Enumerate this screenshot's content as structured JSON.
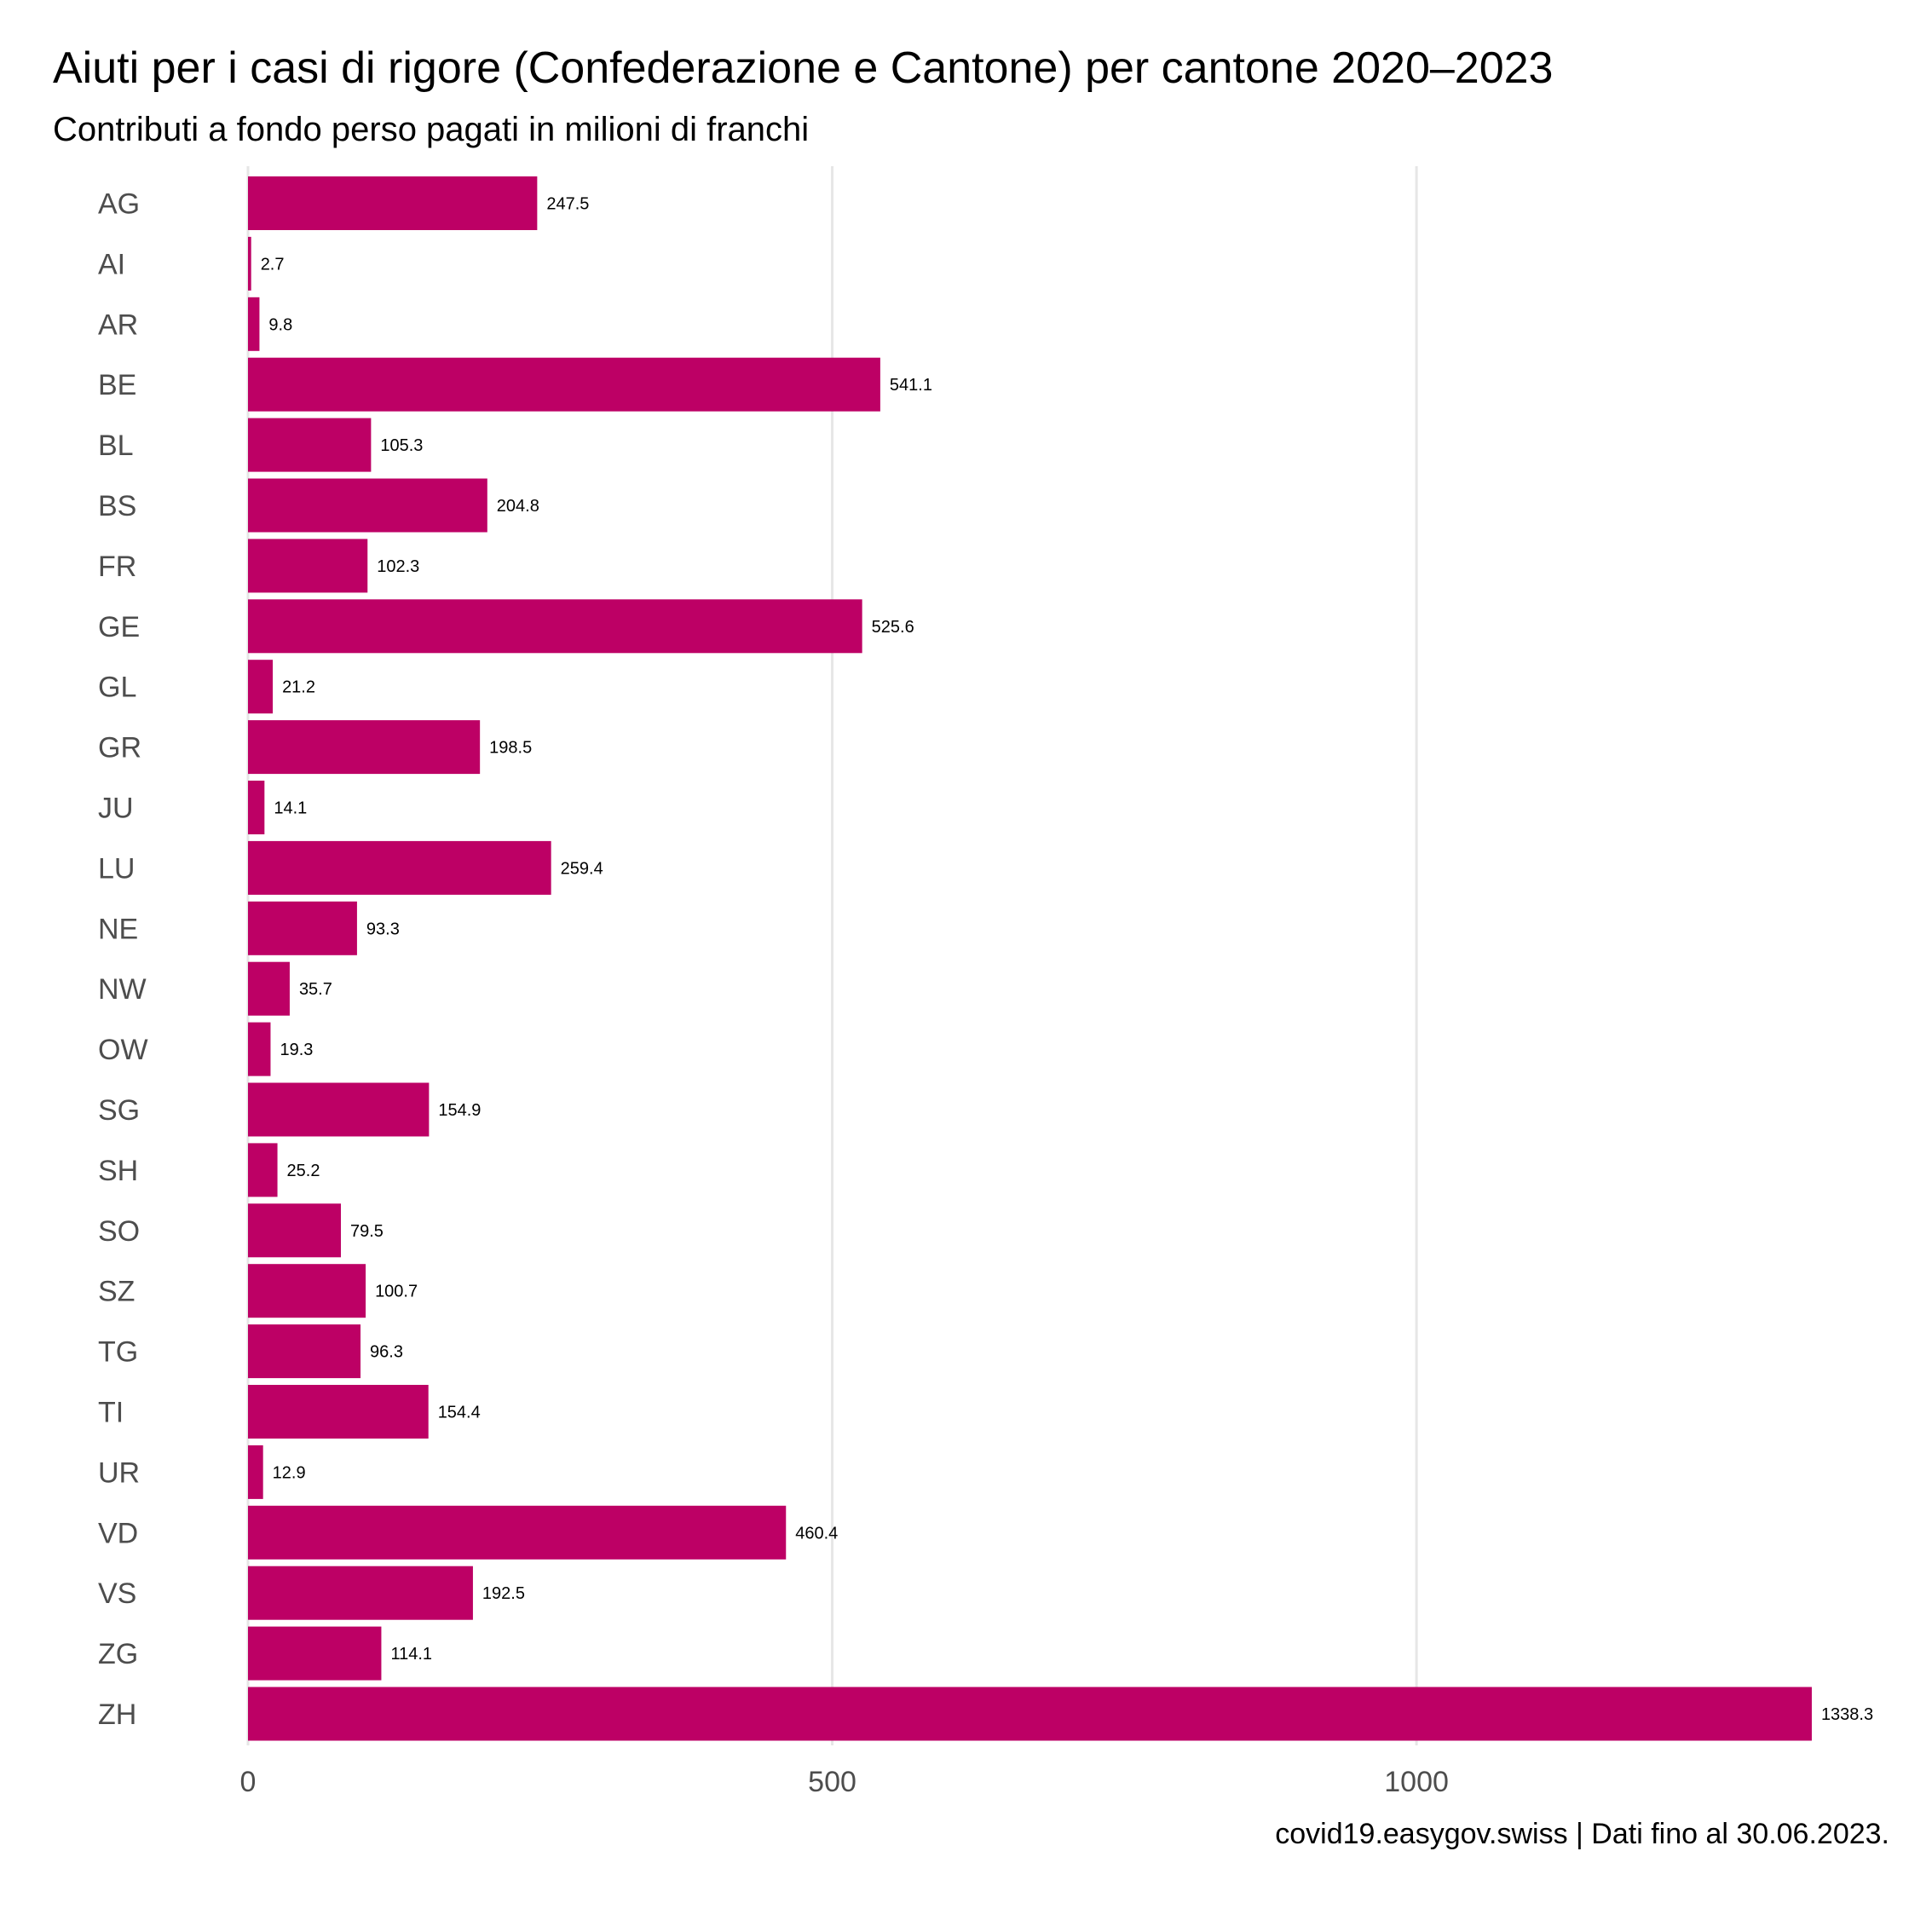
{
  "chart_data": {
    "type": "bar",
    "orientation": "horizontal",
    "title": "Aiuti per i casi di rigore (Confederazione e Cantone) per cantone 2020–2023",
    "subtitle": "Contributi a fondo perso pagati in milioni di franchi",
    "caption": "covid19.easygov.swiss | Dati fino al 30.06.2023.",
    "categories": [
      "AG",
      "AI",
      "AR",
      "BE",
      "BL",
      "BS",
      "FR",
      "GE",
      "GL",
      "GR",
      "JU",
      "LU",
      "NE",
      "NW",
      "OW",
      "SG",
      "SH",
      "SO",
      "SZ",
      "TG",
      "TI",
      "UR",
      "VD",
      "VS",
      "ZG",
      "ZH"
    ],
    "values": [
      247.5,
      2.7,
      9.8,
      541.1,
      105.3,
      204.8,
      102.3,
      525.6,
      21.2,
      198.5,
      14.1,
      259.4,
      93.3,
      35.7,
      19.3,
      154.9,
      25.2,
      79.5,
      100.7,
      96.3,
      154.4,
      12.9,
      460.4,
      192.5,
      114.1,
      1338.3
    ],
    "value_labels": [
      "247.5",
      "2.7",
      "9.8",
      "541.1",
      "105.3",
      "204.8",
      "102.3",
      "525.6",
      "21.2",
      "198.5",
      "14.1",
      "259.4",
      "93.3",
      "35.7",
      "19.3",
      "154.9",
      "25.2",
      "79.5",
      "100.7",
      "96.3",
      "154.4",
      "12.9",
      "460.4",
      "192.5",
      "114.1",
      "1338.3"
    ],
    "xticks": [
      0,
      500,
      1000
    ],
    "xtick_labels": [
      "0",
      "500",
      "1000"
    ],
    "xlim": [
      0,
      1338.3
    ],
    "grid": "vertical major",
    "bar_color": "#bd0065",
    "grid_color": "#e6e6e6",
    "xlabel": "",
    "ylabel": ""
  }
}
